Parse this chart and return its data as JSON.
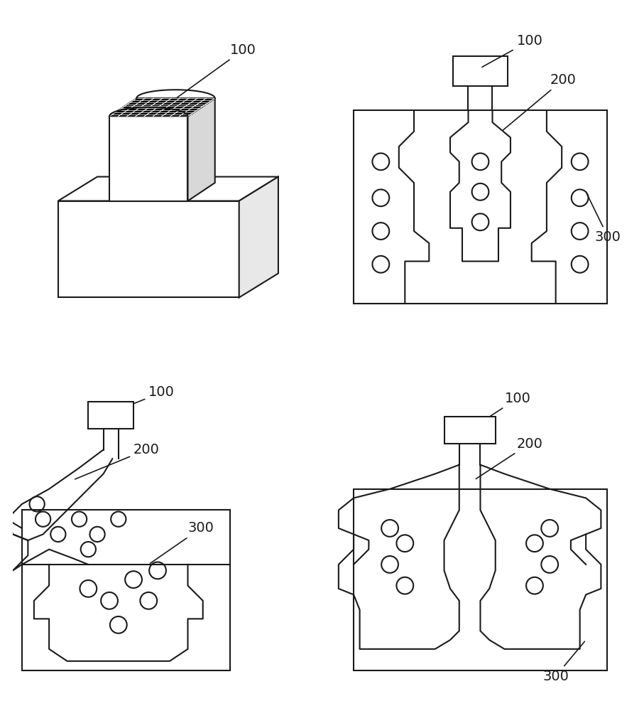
{
  "bg_color": "#ffffff",
  "line_color": "#1a1a1a",
  "label_color": "#1a1a1a",
  "font_size": 14
}
